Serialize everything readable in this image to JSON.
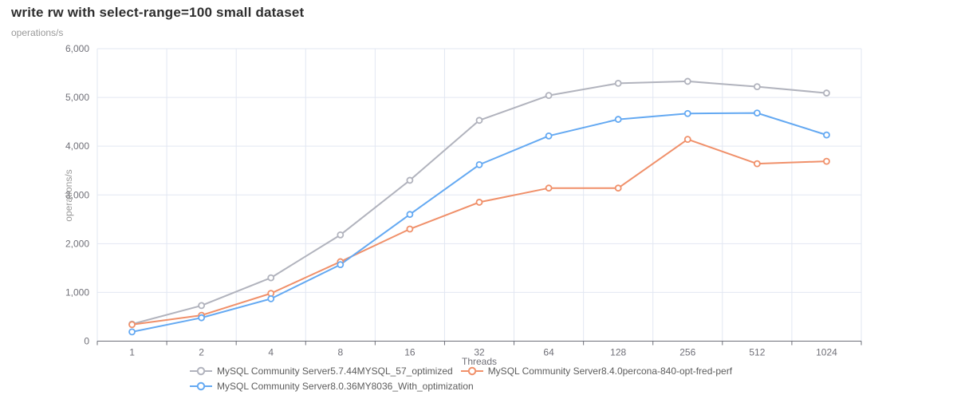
{
  "header": {
    "title": "write rw with select-range=100 small dataset"
  },
  "chart_data": {
    "type": "line",
    "title": "write rw with select-range=100 small dataset",
    "xlabel": "Threads",
    "ylabel": "operations/s",
    "categories": [
      "1",
      "2",
      "4",
      "8",
      "16",
      "32",
      "64",
      "128",
      "256",
      "512",
      "1024"
    ],
    "y_ticks": [
      0,
      1000,
      2000,
      3000,
      4000,
      5000,
      6000
    ],
    "ylim": [
      0,
      6000
    ],
    "grid": true,
    "legend_position": "bottom",
    "marker": "empty-circle",
    "series": [
      {
        "name": "MySQL Community Server5.7.44MYSQL_57_optimized",
        "color": "#b1b3bd",
        "values": [
          350,
          730,
          1300,
          2180,
          3300,
          4530,
          5040,
          5290,
          5330,
          5220,
          5090
        ]
      },
      {
        "name": "MySQL Community Server8.4.0percona-840-opt-fred-perf",
        "color": "#f0906a",
        "values": [
          340,
          530,
          980,
          1630,
          2300,
          2850,
          3140,
          3140,
          4140,
          3640,
          3690
        ]
      },
      {
        "name": "MySQL Community Server8.0.36MY8036_With_optimization",
        "color": "#64a9f2",
        "values": [
          190,
          480,
          870,
          1570,
          2600,
          3620,
          4210,
          4550,
          4670,
          4680,
          4230
        ]
      }
    ],
    "legend_rows": [
      [
        0,
        1
      ],
      [
        2
      ]
    ],
    "colors": {
      "grid": "#e2e7f2",
      "axis": "#6e7079",
      "tick_text": "#707078"
    }
  }
}
